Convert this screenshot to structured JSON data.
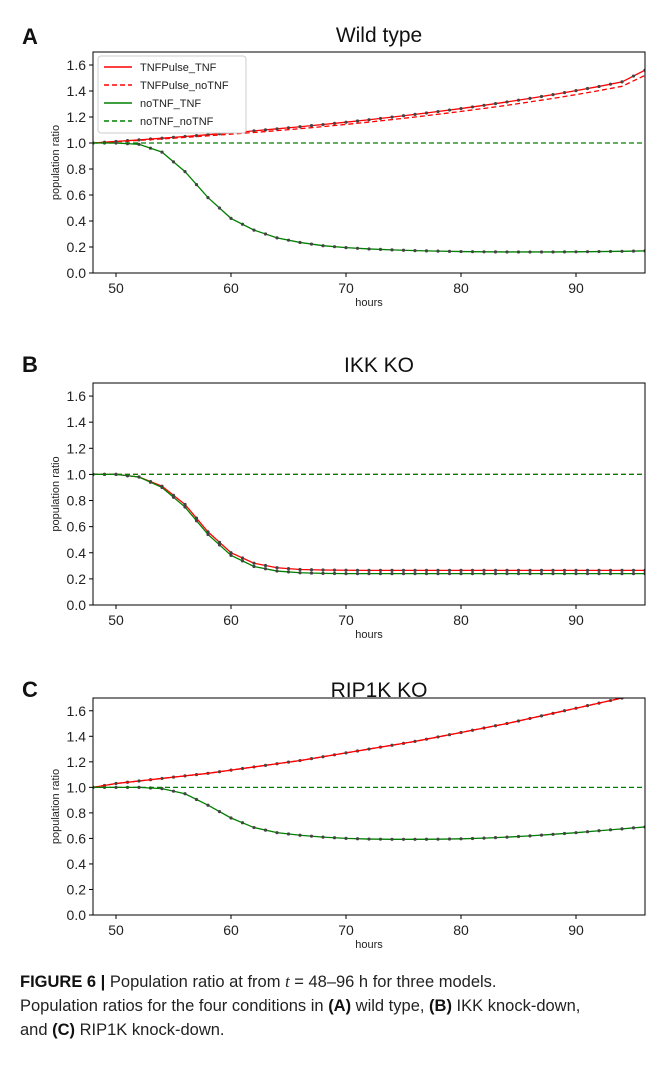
{
  "chart_data": [
    {
      "type": "line",
      "panel_letter": "A",
      "title": "Wild type",
      "xlabel": "hours",
      "ylabel": "population ratio",
      "xlim": [
        48,
        96
      ],
      "ylim": [
        0.0,
        1.7
      ],
      "xticks": [
        50,
        60,
        70,
        80,
        90
      ],
      "yticks": [
        0.0,
        0.2,
        0.4,
        0.6,
        0.8,
        1.0,
        1.2,
        1.4,
        1.6
      ],
      "legend": "top-left",
      "x": [
        48,
        50,
        52,
        54,
        56,
        58,
        60,
        62,
        64,
        66,
        68,
        70,
        72,
        74,
        76,
        78,
        80,
        82,
        84,
        86,
        88,
        90,
        92,
        94,
        96
      ],
      "series": [
        {
          "name": "TNFPulse_TNF",
          "color": "#ff0000",
          "dash": "solid",
          "markers": true,
          "values": [
            1.0,
            1.012,
            1.024,
            1.037,
            1.05,
            1.064,
            1.078,
            1.093,
            1.109,
            1.125,
            1.142,
            1.16,
            1.179,
            1.199,
            1.22,
            1.242,
            1.265,
            1.29,
            1.316,
            1.343,
            1.372,
            1.403,
            1.435,
            1.47,
            1.56
          ]
        },
        {
          "name": "TNFPulse_noTNF",
          "color": "#ff0000",
          "dash": "dashed",
          "markers": false,
          "values": [
            1.0,
            1.01,
            1.02,
            1.031,
            1.043,
            1.055,
            1.068,
            1.081,
            1.095,
            1.11,
            1.126,
            1.143,
            1.161,
            1.18,
            1.2,
            1.221,
            1.243,
            1.266,
            1.29,
            1.316,
            1.343,
            1.372,
            1.403,
            1.436,
            1.52
          ]
        },
        {
          "name": "noTNF_TNF",
          "color": "#008000",
          "dash": "solid",
          "markers": true,
          "values": [
            1.0,
            1.0,
            0.99,
            0.93,
            0.78,
            0.58,
            0.42,
            0.33,
            0.27,
            0.235,
            0.21,
            0.195,
            0.185,
            0.178,
            0.172,
            0.168,
            0.165,
            0.163,
            0.162,
            0.162,
            0.162,
            0.163,
            0.165,
            0.167,
            0.17
          ]
        },
        {
          "name": "noTNF_noTNF",
          "color": "#008000",
          "dash": "dashed",
          "markers": false,
          "values": [
            1.0,
            1.0,
            1.0,
            1.0,
            1.0,
            1.0,
            1.0,
            1.0,
            1.0,
            1.0,
            1.0,
            1.0,
            1.0,
            1.0,
            1.0,
            1.0,
            1.0,
            1.0,
            1.0,
            1.0,
            1.0,
            1.0,
            1.0,
            1.0,
            1.0
          ]
        }
      ]
    },
    {
      "type": "line",
      "panel_letter": "B",
      "title": "IKK KO",
      "xlabel": "hours",
      "ylabel": "population ratio",
      "xlim": [
        48,
        96
      ],
      "ylim": [
        0.0,
        1.7
      ],
      "xticks": [
        50,
        60,
        70,
        80,
        90
      ],
      "yticks": [
        0.0,
        0.2,
        0.4,
        0.6,
        0.8,
        1.0,
        1.2,
        1.4,
        1.6
      ],
      "x": [
        48,
        50,
        52,
        54,
        56,
        58,
        60,
        62,
        64,
        66,
        68,
        70,
        72,
        74,
        76,
        78,
        80,
        82,
        84,
        86,
        88,
        90,
        92,
        94,
        96
      ],
      "series": [
        {
          "color": "#ff0000",
          "dash": "solid",
          "markers": true,
          "values": [
            1.0,
            1.0,
            0.98,
            0.91,
            0.77,
            0.56,
            0.4,
            0.32,
            0.285,
            0.272,
            0.268,
            0.266,
            0.265,
            0.265,
            0.265,
            0.265,
            0.265,
            0.265,
            0.265,
            0.265,
            0.265,
            0.265,
            0.265,
            0.265,
            0.265
          ]
        },
        {
          "color": "#ff0000",
          "dash": "dashed",
          "markers": false,
          "values": [
            1.0,
            1.0,
            1.0,
            1.0,
            1.0,
            1.0,
            1.0,
            1.0,
            1.0,
            1.0,
            1.0,
            1.0,
            1.0,
            1.0,
            1.0,
            1.0,
            1.0,
            1.0,
            1.0,
            1.0,
            1.0,
            1.0,
            1.0,
            1.0,
            1.0
          ]
        },
        {
          "color": "#008000",
          "dash": "solid",
          "markers": true,
          "values": [
            1.0,
            1.0,
            0.98,
            0.9,
            0.75,
            0.54,
            0.38,
            0.295,
            0.26,
            0.247,
            0.242,
            0.24,
            0.24,
            0.24,
            0.24,
            0.24,
            0.24,
            0.24,
            0.24,
            0.24,
            0.24,
            0.24,
            0.24,
            0.24,
            0.24
          ]
        },
        {
          "color": "#008000",
          "dash": "dashed",
          "markers": false,
          "values": [
            1.0,
            1.0,
            1.0,
            1.0,
            1.0,
            1.0,
            1.0,
            1.0,
            1.0,
            1.0,
            1.0,
            1.0,
            1.0,
            1.0,
            1.0,
            1.0,
            1.0,
            1.0,
            1.0,
            1.0,
            1.0,
            1.0,
            1.0,
            1.0,
            1.0
          ]
        }
      ]
    },
    {
      "type": "line",
      "panel_letter": "C",
      "title": "RIP1K KO",
      "xlabel": "hours",
      "ylabel": "population ratio",
      "xlim": [
        48,
        96
      ],
      "ylim": [
        0.0,
        1.7
      ],
      "xticks": [
        50,
        60,
        70,
        80,
        90
      ],
      "yticks": [
        0.0,
        0.2,
        0.4,
        0.6,
        0.8,
        1.0,
        1.2,
        1.4,
        1.6
      ],
      "x": [
        48,
        50,
        52,
        54,
        56,
        58,
        60,
        62,
        64,
        66,
        68,
        70,
        72,
        74,
        76,
        78,
        80,
        82,
        84,
        86,
        88,
        90,
        92,
        94,
        96
      ],
      "series": [
        {
          "color": "#ff0000",
          "dash": "solid",
          "markers": true,
          "values": [
            1.0,
            1.03,
            1.05,
            1.07,
            1.09,
            1.11,
            1.135,
            1.16,
            1.185,
            1.21,
            1.24,
            1.27,
            1.3,
            1.33,
            1.36,
            1.395,
            1.43,
            1.465,
            1.5,
            1.54,
            1.58,
            1.62,
            1.66,
            1.7,
            1.74
          ]
        },
        {
          "color": "#ff0000",
          "dash": "dashed",
          "markers": false,
          "values": [
            1.0,
            1.03,
            1.05,
            1.07,
            1.09,
            1.11,
            1.135,
            1.16,
            1.185,
            1.21,
            1.24,
            1.27,
            1.3,
            1.33,
            1.36,
            1.395,
            1.43,
            1.465,
            1.5,
            1.54,
            1.58,
            1.62,
            1.66,
            1.7,
            1.74
          ]
        },
        {
          "color": "#008000",
          "dash": "solid",
          "markers": true,
          "values": [
            1.0,
            1.0,
            1.0,
            0.99,
            0.95,
            0.86,
            0.76,
            0.685,
            0.645,
            0.625,
            0.61,
            0.6,
            0.595,
            0.593,
            0.593,
            0.594,
            0.597,
            0.602,
            0.61,
            0.62,
            0.632,
            0.645,
            0.66,
            0.675,
            0.69
          ]
        },
        {
          "color": "#008000",
          "dash": "dashed",
          "markers": false,
          "values": [
            1.0,
            1.0,
            1.0,
            1.0,
            1.0,
            1.0,
            1.0,
            1.0,
            1.0,
            1.0,
            1.0,
            1.0,
            1.0,
            1.0,
            1.0,
            1.0,
            1.0,
            1.0,
            1.0,
            1.0,
            1.0,
            1.0,
            1.0,
            1.0,
            1.0
          ]
        }
      ]
    }
  ],
  "caption": {
    "label": "FIGURE 6 |",
    "line1_text_a": " Population ratio at from ",
    "line1_var": "t",
    "line1_text_b": " = 48–96 h for three models.",
    "line2_text": "Population ratios for the four conditions in ",
    "tag_a": "(A)",
    "text_a": " wild type, ",
    "tag_b": "(B)",
    "text_b": " IKK knock-down,",
    "line3_text": "and ",
    "tag_c": "(C)",
    "text_c": " RIP1K knock-down."
  }
}
